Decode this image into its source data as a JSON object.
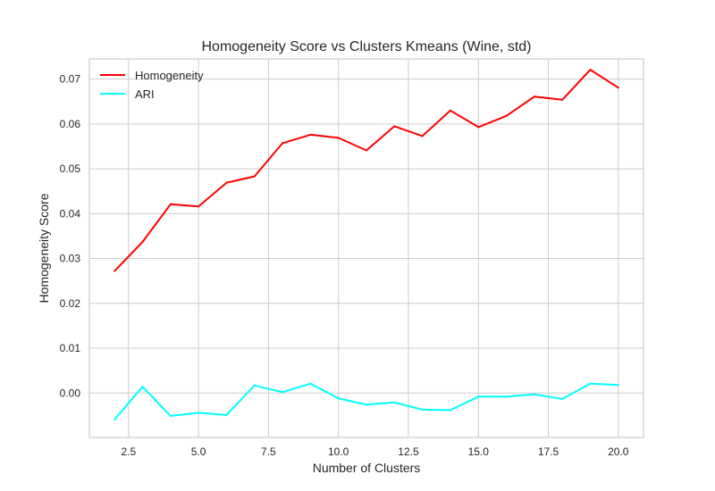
{
  "chart_data": {
    "type": "line",
    "title": "Homogeneity Score vs Clusters Kmeans (Wine, std)",
    "xlabel": "Number of Clusters",
    "ylabel": "Homogeneity Score",
    "xlim": [
      1.1,
      20.9
    ],
    "ylim": [
      -0.0099,
      0.0745
    ],
    "x_ticks": [
      2.5,
      5.0,
      7.5,
      10.0,
      12.5,
      15.0,
      17.5,
      20.0
    ],
    "x_tick_labels": [
      "2.5",
      "5.0",
      "7.5",
      "10.0",
      "12.5",
      "15.0",
      "17.5",
      "20.0"
    ],
    "y_ticks": [
      0.0,
      0.01,
      0.02,
      0.03,
      0.04,
      0.05,
      0.06,
      0.07
    ],
    "y_tick_labels": [
      "0.00",
      "0.01",
      "0.02",
      "0.03",
      "0.04",
      "0.05",
      "0.06",
      "0.07"
    ],
    "grid": true,
    "legend_position": "top-left",
    "x": [
      2,
      3,
      4,
      5,
      6,
      7,
      8,
      9,
      10,
      11,
      12,
      13,
      14,
      15,
      16,
      17,
      18,
      19,
      20
    ],
    "series": [
      {
        "name": "Homogeneity",
        "color": "#ff0000",
        "values": [
          0.0272,
          0.0337,
          0.0421,
          0.0416,
          0.0469,
          0.0483,
          0.0557,
          0.0576,
          0.0569,
          0.0541,
          0.0595,
          0.0573,
          0.063,
          0.0593,
          0.0618,
          0.0661,
          0.0654,
          0.0721,
          0.0681
        ]
      },
      {
        "name": "ARI",
        "color": "#00ffff",
        "values": [
          -0.0059,
          0.0014,
          -0.0051,
          -0.0044,
          -0.0049,
          0.0017,
          0.0002,
          0.0021,
          -0.0012,
          -0.0026,
          -0.0021,
          -0.0037,
          -0.0038,
          -0.0008,
          -0.0008,
          -0.0003,
          -0.0013,
          0.0021,
          0.0018
        ]
      }
    ]
  }
}
